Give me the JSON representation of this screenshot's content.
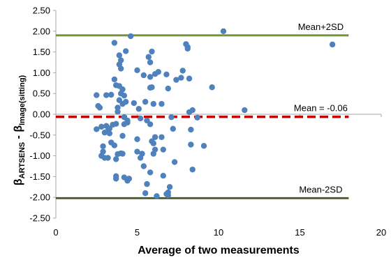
{
  "chart_data": {
    "type": "scatter",
    "xlabel": "Average of two measurements",
    "ylabel": {
      "base_left": "β",
      "sub_left": "ARTSENS",
      "separator": " - ",
      "base_right": "β",
      "sub_right": "Image(sitting)"
    },
    "xlim": [
      0,
      20
    ],
    "ylim": [
      -2.5,
      2.5
    ],
    "x_ticks": [
      0,
      5,
      10,
      15,
      20
    ],
    "x_tick_labels": [
      "0",
      "5",
      "10",
      "15",
      "20"
    ],
    "y_ticks": [
      2.5,
      2.0,
      1.5,
      1.0,
      0.5,
      0.0,
      -0.5,
      -1.0,
      -1.5,
      -2.0,
      -2.5
    ],
    "y_tick_labels": [
      "2.50",
      "2.00",
      "1.50",
      "1.00",
      "0.50",
      "0.00",
      "-0.50",
      "-1.00",
      "-1.50",
      "-2.00",
      "-2.50"
    ],
    "grid": false,
    "point_color": "#4F81BD",
    "reference_lines": [
      {
        "label": "Mean+2SD",
        "y": 1.9,
        "x_range": [
          0,
          18
        ],
        "color": "#77933C",
        "style": "solid"
      },
      {
        "label": "Mean = -0.06",
        "y": -0.06,
        "x_range": [
          0,
          18
        ],
        "color": "#C00000",
        "style": "dashed"
      },
      {
        "label": "Mean-2SD",
        "y": -2.02,
        "x_range": [
          0,
          18
        ],
        "color": "#4F6228",
        "style": "solid"
      }
    ],
    "points": [
      [
        2.5,
        0.46
      ],
      [
        2.6,
        0.2
      ],
      [
        2.7,
        0.16
      ],
      [
        2.5,
        -0.36
      ],
      [
        2.8,
        -0.3
      ],
      [
        2.9,
        -0.9
      ],
      [
        2.8,
        -1.0
      ],
      [
        3.0,
        -1.05
      ],
      [
        2.9,
        -0.77
      ],
      [
        3.0,
        -0.44
      ],
      [
        3.1,
        -0.28
      ],
      [
        3.2,
        -0.4
      ],
      [
        3.1,
        0.46
      ],
      [
        3.3,
        -0.34
      ],
      [
        3.2,
        -1.05
      ],
      [
        3.4,
        0.47
      ],
      [
        3.3,
        -0.46
      ],
      [
        3.4,
        -0.68
      ],
      [
        3.5,
        -0.25
      ],
      [
        3.6,
        0.84
      ],
      [
        3.6,
        -0.75
      ],
      [
        3.7,
        0.7
      ],
      [
        3.6,
        1.72
      ],
      [
        3.7,
        -0.23
      ],
      [
        3.7,
        -1.49
      ],
      [
        3.7,
        -1.08
      ],
      [
        3.7,
        -1.55
      ],
      [
        3.8,
        -0.96
      ],
      [
        3.8,
        0.06
      ],
      [
        3.8,
        0.16
      ],
      [
        3.9,
        1.42
      ],
      [
        3.9,
        1.2
      ],
      [
        3.9,
        0.68
      ],
      [
        3.9,
        0.34
      ],
      [
        4.0,
        1.3
      ],
      [
        4.0,
        1.1
      ],
      [
        4.0,
        0.5
      ],
      [
        4.1,
        0.6
      ],
      [
        4.2,
        0.45
      ],
      [
        4.1,
        0.25
      ],
      [
        4.2,
        -0.07
      ],
      [
        4.2,
        -0.24
      ],
      [
        4.1,
        -0.52
      ],
      [
        4.0,
        -0.94
      ],
      [
        4.2,
        -1.52
      ],
      [
        4.1,
        -0.95
      ],
      [
        4.3,
        1.52
      ],
      [
        4.3,
        0.3
      ],
      [
        4.4,
        -0.15
      ],
      [
        4.4,
        -0.2
      ],
      [
        4.5,
        -1.55
      ],
      [
        4.4,
        -1.6
      ],
      [
        4.6,
        1.88
      ],
      [
        4.8,
        0.27
      ],
      [
        5.0,
        1.06
      ],
      [
        5.1,
        0.13
      ],
      [
        5.2,
        -0.1
      ],
      [
        5.0,
        -0.6
      ],
      [
        5.0,
        -0.9
      ],
      [
        5.2,
        -1.05
      ],
      [
        5.3,
        -0.95
      ],
      [
        5.4,
        -1.25
      ],
      [
        5.4,
        0.94
      ],
      [
        5.5,
        0.3
      ],
      [
        5.6,
        -0.15
      ],
      [
        5.6,
        -1.68
      ],
      [
        5.5,
        -1.9
      ],
      [
        5.7,
        1.38
      ],
      [
        5.8,
        1.25
      ],
      [
        5.8,
        0.9
      ],
      [
        5.8,
        0.64
      ],
      [
        5.9,
        1.51
      ],
      [
        5.9,
        0.65
      ],
      [
        5.8,
        -0.24
      ],
      [
        5.9,
        -0.65
      ],
      [
        6.0,
        -0.7
      ],
      [
        6.0,
        -0.95
      ],
      [
        5.8,
        -1.4
      ],
      [
        6.1,
        0.97
      ],
      [
        6.0,
        0.25
      ],
      [
        6.1,
        -0.55
      ],
      [
        6.1,
        -0.85
      ],
      [
        6.2,
        -1.97
      ],
      [
        6.3,
        1.02
      ],
      [
        6.5,
        0.25
      ],
      [
        6.5,
        -0.55
      ],
      [
        6.6,
        -0.85
      ],
      [
        6.6,
        -1.48
      ],
      [
        6.8,
        0.96
      ],
      [
        6.9,
        0.62
      ],
      [
        6.9,
        -1.88
      ],
      [
        6.8,
        -1.92
      ],
      [
        6.9,
        -1.95
      ],
      [
        7.0,
        -1.75
      ],
      [
        7.1,
        -0.07
      ],
      [
        7.2,
        -0.35
      ],
      [
        7.3,
        -1.15
      ],
      [
        7.4,
        0.83
      ],
      [
        7.7,
        0.88
      ],
      [
        7.8,
        1.05
      ],
      [
        8.0,
        1.69
      ],
      [
        8.1,
        1.62
      ],
      [
        8.1,
        1.58
      ],
      [
        8.2,
        0.86
      ],
      [
        8.2,
        0.05
      ],
      [
        8.3,
        -0.37
      ],
      [
        8.3,
        -0.73
      ],
      [
        8.4,
        -1.33
      ],
      [
        8.4,
        0.1
      ],
      [
        8.7,
        -0.08
      ],
      [
        9.1,
        -0.76
      ],
      [
        9.6,
        0.65
      ],
      [
        10.3,
        2.0
      ],
      [
        11.6,
        0.1
      ],
      [
        17.0,
        1.68
      ]
    ]
  }
}
